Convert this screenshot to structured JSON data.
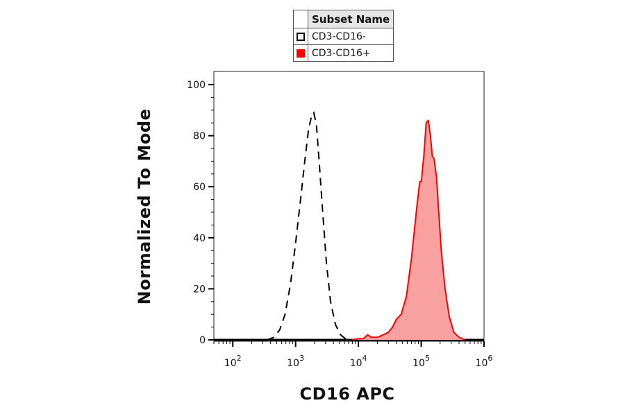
{
  "legend": {
    "header": "Subset Name",
    "items": [
      {
        "label": "CD3-CD16-",
        "style": "open",
        "color": "#000000"
      },
      {
        "label": "CD3-CD16+",
        "style": "filled",
        "color": "#ff0000"
      }
    ]
  },
  "chart_data": {
    "type": "area",
    "xlabel": "CD16 APC",
    "ylabel": "Normalized To Mode",
    "xscale": "log",
    "xlim": [
      50,
      1000000
    ],
    "ylim": [
      0,
      100
    ],
    "y_ticks": [
      0,
      20,
      40,
      60,
      80,
      100
    ],
    "x_ticks": [
      {
        "base": "10",
        "exp": "2",
        "value": 100
      },
      {
        "base": "10",
        "exp": "3",
        "value": 1000
      },
      {
        "base": "10",
        "exp": "4",
        "value": 10000
      },
      {
        "base": "10",
        "exp": "5",
        "value": 100000
      },
      {
        "base": "10",
        "exp": "6",
        "value": 1000000
      }
    ],
    "series": [
      {
        "name": "CD3-CD16-",
        "style": "dashed",
        "color": "#000000",
        "x": [
          350,
          450,
          560,
          680,
          830,
          1000,
          1200,
          1400,
          1600,
          1800,
          1950,
          2150,
          2400,
          2700,
          3100,
          3600,
          4300,
          5200,
          6200,
          7000
        ],
        "y": [
          0,
          1,
          4,
          10,
          22,
          38,
          55,
          70,
          82,
          88,
          89,
          84,
          68,
          50,
          30,
          15,
          6,
          2,
          0.5,
          0
        ]
      },
      {
        "name": "CD3-CD16+",
        "style": "filled",
        "color": "#ff0000",
        "fill": "#f9a0a0",
        "x": [
          8000,
          10000,
          12000,
          14000,
          16000,
          20000,
          25000,
          30000,
          35000,
          40000,
          48000,
          58000,
          70000,
          85000,
          95000,
          100000,
          110000,
          120000,
          130000,
          140000,
          150000,
          160000,
          175000,
          190000,
          210000,
          240000,
          280000,
          330000,
          400000,
          500000
        ],
        "y": [
          0,
          0.5,
          0.5,
          2,
          1,
          1,
          2,
          3,
          5,
          8,
          10,
          17,
          32,
          52,
          62,
          62,
          72,
          85,
          86,
          80,
          72,
          71,
          64,
          50,
          34,
          20,
          9,
          3,
          1,
          0
        ]
      }
    ]
  }
}
